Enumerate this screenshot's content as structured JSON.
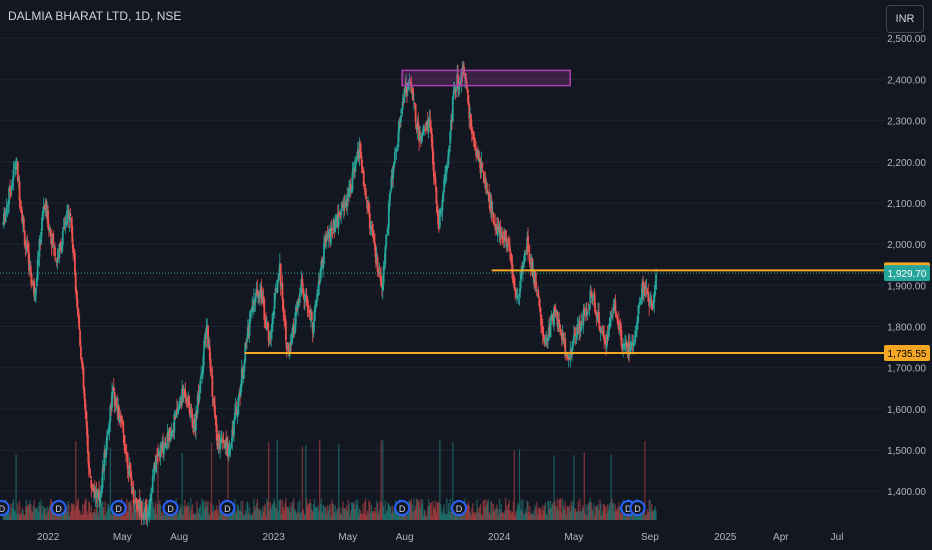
{
  "header": {
    "title": "DALMIA BHARAT LTD, 1D, NSE",
    "currency_button": "INR"
  },
  "colors": {
    "background": "#131722",
    "up": "#26a69a",
    "down": "#ef5350",
    "level_line": "#f5a623",
    "zone_border": "#b03fb0",
    "price_label": "#26a69a"
  },
  "chart_data": {
    "type": "candlestick",
    "title": "DALMIA BHARAT LTD, 1D, NSE",
    "xlabel": "",
    "ylabel": "",
    "y_ticks": [
      1400,
      1500,
      1600,
      1700,
      1800,
      1900,
      2000,
      2100,
      2200,
      2300,
      2400,
      2500
    ],
    "y_tick_labels": [
      "1,400.00",
      "1,500.00",
      "1,600.00",
      "1,700.00",
      "1,800.00",
      "1,900.00",
      "2,000.00",
      "2,100.00",
      "2,200.00",
      "2,300.00",
      "2,400.00",
      "2,500.00"
    ],
    "ylim": [
      1330,
      2520
    ],
    "x_tick_labels": [
      "2022",
      "May",
      "Aug",
      "2023",
      "May",
      "Aug",
      "2024",
      "May",
      "Sep",
      "2025",
      "Apr",
      "Jul"
    ],
    "x_range": [
      "2021-10-15",
      "2025-09-15"
    ],
    "price_path": [
      [
        "2021-10-20",
        2050
      ],
      [
        "2021-11-10",
        2200
      ],
      [
        "2021-11-25",
        2000
      ],
      [
        "2021-12-10",
        1880
      ],
      [
        "2021-12-25",
        2100
      ],
      [
        "2022-01-15",
        1960
      ],
      [
        "2022-02-05",
        2090
      ],
      [
        "2022-02-20",
        1800
      ],
      [
        "2022-03-10",
        1420
      ],
      [
        "2022-03-25",
        1380
      ],
      [
        "2022-04-15",
        1640
      ],
      [
        "2022-05-01",
        1550
      ],
      [
        "2022-05-20",
        1380
      ],
      [
        "2022-06-10",
        1340
      ],
      [
        "2022-06-25",
        1480
      ],
      [
        "2022-07-20",
        1550
      ],
      [
        "2022-08-10",
        1650
      ],
      [
        "2022-08-25",
        1550
      ],
      [
        "2022-09-15",
        1800
      ],
      [
        "2022-10-01",
        1520
      ],
      [
        "2022-10-20",
        1500
      ],
      [
        "2022-11-05",
        1620
      ],
      [
        "2022-11-25",
        1840
      ],
      [
        "2022-12-10",
        1900
      ],
      [
        "2022-12-25",
        1760
      ],
      [
        "2023-01-10",
        1950
      ],
      [
        "2023-01-25",
        1720
      ],
      [
        "2023-02-15",
        1900
      ],
      [
        "2023-03-05",
        1800
      ],
      [
        "2023-03-25",
        2000
      ],
      [
        "2023-04-15",
        2060
      ],
      [
        "2023-05-05",
        2140
      ],
      [
        "2023-05-20",
        2230
      ],
      [
        "2023-06-05",
        2060
      ],
      [
        "2023-06-25",
        1880
      ],
      [
        "2023-07-10",
        2150
      ],
      [
        "2023-07-30",
        2360
      ],
      [
        "2023-08-10",
        2400
      ],
      [
        "2023-08-25",
        2250
      ],
      [
        "2023-09-10",
        2300
      ],
      [
        "2023-09-25",
        2050
      ],
      [
        "2023-10-10",
        2200
      ],
      [
        "2023-10-20",
        2380
      ],
      [
        "2023-11-05",
        2420
      ],
      [
        "2023-11-20",
        2250
      ],
      [
        "2023-12-10",
        2150
      ],
      [
        "2023-12-25",
        2050
      ],
      [
        "2024-01-15",
        2000
      ],
      [
        "2024-01-30",
        1860
      ],
      [
        "2024-02-15",
        2000
      ],
      [
        "2024-03-01",
        1900
      ],
      [
        "2024-03-15",
        1750
      ],
      [
        "2024-04-01",
        1840
      ],
      [
        "2024-04-20",
        1720
      ],
      [
        "2024-05-10",
        1800
      ],
      [
        "2024-05-30",
        1880
      ],
      [
        "2024-06-20",
        1760
      ],
      [
        "2024-07-05",
        1860
      ],
      [
        "2024-07-20",
        1740
      ],
      [
        "2024-08-05",
        1760
      ],
      [
        "2024-08-20",
        1900
      ],
      [
        "2024-09-05",
        1840
      ],
      [
        "2024-09-12",
        1929.7
      ]
    ],
    "levels": [
      {
        "name": "resistance",
        "price": 1936.35,
        "label": "1,936.35",
        "from": "2023-12-20"
      },
      {
        "name": "support",
        "price": 1735.55,
        "label": "1,735.55",
        "from": "2022-11-15"
      }
    ],
    "last_price": {
      "price": 1929.7,
      "label": "1,929.70"
    },
    "zone": {
      "x0": "2023-07-28",
      "x1": "2024-04-25",
      "y0": 2385,
      "y1": 2422
    },
    "event_markers": [
      "D",
      "D",
      "D",
      "D",
      "D",
      "D",
      "D",
      "D",
      "D"
    ],
    "event_dates": [
      "2021-10-18",
      "2022-01-18",
      "2022-04-25",
      "2022-07-18",
      "2022-10-18",
      "2023-07-28",
      "2023-10-28",
      "2024-07-28",
      "2024-08-12"
    ],
    "volume_note": "volume bars at bottom"
  }
}
